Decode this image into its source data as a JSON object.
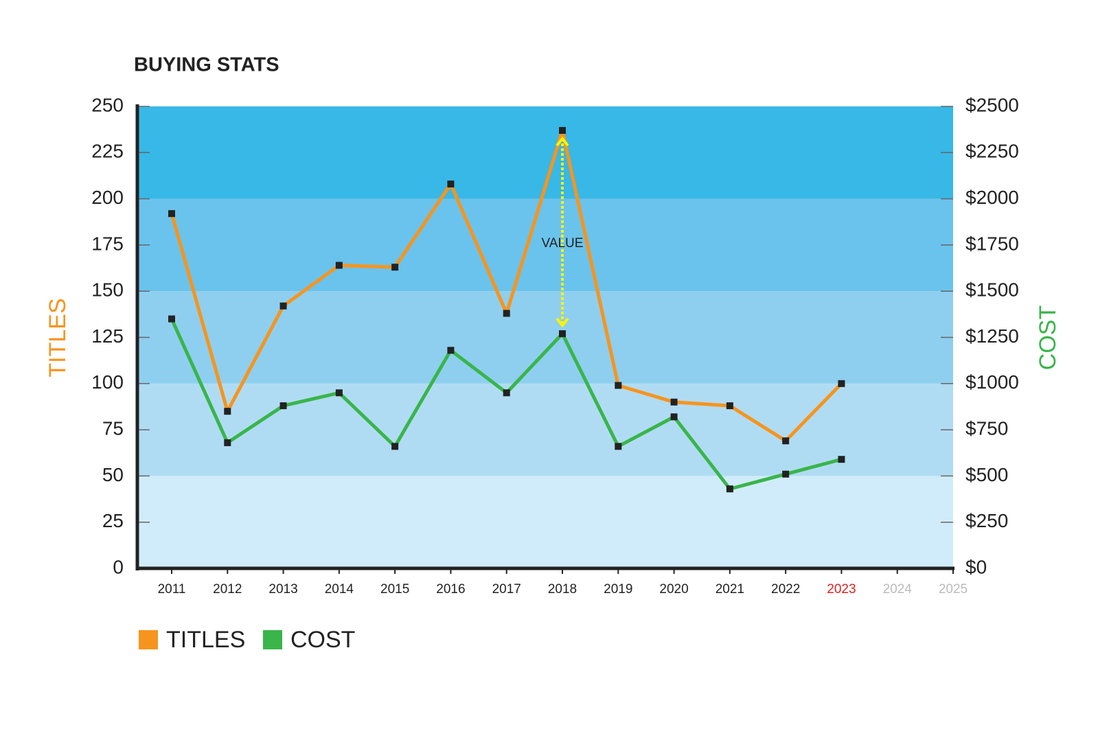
{
  "chart_data": {
    "type": "line",
    "title": "BUYING STATS",
    "ylabel": "TITLES",
    "y2label": "COST",
    "ylabel_color": "#f7941d",
    "y2label_color": "#39b54a",
    "categories": [
      "2011",
      "2012",
      "2013",
      "2014",
      "2015",
      "2016",
      "2017",
      "2018",
      "2019",
      "2020",
      "2021",
      "2022",
      "2023",
      "2024",
      "2025"
    ],
    "category_colors": [
      "#222",
      "#222",
      "#222",
      "#222",
      "#222",
      "#222",
      "#222",
      "#222",
      "#222",
      "#222",
      "#222",
      "#222",
      "#e02020",
      "#bbbbbb",
      "#bbbbbb"
    ],
    "series": [
      {
        "name": "TITLES",
        "color": "#f7941d",
        "values": [
          192,
          85,
          142,
          164,
          163,
          208,
          138,
          237,
          99,
          90,
          88,
          69,
          100,
          null,
          null
        ]
      },
      {
        "name": "COST",
        "color": "#39b54a",
        "axis": "y2",
        "values": [
          1350,
          680,
          880,
          950,
          660,
          1180,
          950,
          1270,
          660,
          820,
          430,
          510,
          590,
          null,
          null
        ]
      }
    ],
    "ylim": [
      0,
      250
    ],
    "yticks": [
      0,
      25,
      50,
      75,
      100,
      125,
      150,
      175,
      200,
      225,
      250
    ],
    "y2lim": [
      0,
      2500
    ],
    "y2ticks": [
      {
        "value": 0,
        "label": "$0"
      },
      {
        "value": 250,
        "label": "$250"
      },
      {
        "value": 500,
        "label": "$500"
      },
      {
        "value": 750,
        "label": "$750"
      },
      {
        "value": 1000,
        "label": "$1000"
      },
      {
        "value": 1250,
        "label": "$1250"
      },
      {
        "value": 1500,
        "label": "$1500"
      },
      {
        "value": 1750,
        "label": "$1750"
      },
      {
        "value": 2000,
        "label": "$2000"
      },
      {
        "value": 2250,
        "label": "$2250"
      },
      {
        "value": 2500,
        "label": "$2500"
      }
    ],
    "bands": [
      {
        "from": 0,
        "to": 50,
        "color": "#d0ecfa"
      },
      {
        "from": 50,
        "to": 100,
        "color": "#b0dcf3"
      },
      {
        "from": 100,
        "to": 150,
        "color": "#8ecfef"
      },
      {
        "from": 150,
        "to": 200,
        "color": "#6ac3ec"
      },
      {
        "from": 200,
        "to": 250,
        "color": "#38b8e6"
      }
    ],
    "annotation": {
      "text": "VALUE",
      "x": "2018",
      "color": "#fff200"
    }
  }
}
